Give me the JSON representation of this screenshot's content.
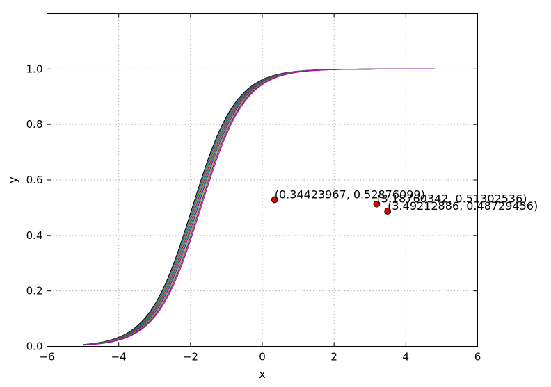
{
  "chart_data": {
    "type": "line",
    "title": "",
    "xlabel": "x",
    "ylabel": "y",
    "xlim": [
      -6,
      6
    ],
    "ylim": [
      0,
      1.2
    ],
    "xticks": [
      -6,
      -4,
      -2,
      0,
      2,
      4,
      6
    ],
    "yticks": [
      0.0,
      0.2,
      0.4,
      0.6,
      0.8,
      1.0
    ],
    "xtick_labels": [
      "−6",
      "−4",
      "−2",
      "0",
      "2",
      "4",
      "6"
    ],
    "ytick_labels": [
      "0.0",
      "0.2",
      "0.4",
      "0.6",
      "0.8",
      "1.0"
    ],
    "grid": true,
    "curve_family": {
      "function": "logistic",
      "x_range": [
        -5,
        4.8
      ],
      "midpoints": [
        -1.95,
        -1.92,
        -1.89,
        -1.86,
        -1.83,
        -1.8,
        -1.77,
        -1.74,
        -1.71
      ],
      "slope": 1.65,
      "colors": [
        "#000000",
        "#1f4e9a",
        "#2e7d32",
        "#b71c1c",
        "#00838f",
        "#6a1b9a",
        "#9e9d24",
        "#424242",
        "#c000c0"
      ]
    },
    "points": [
      {
        "x": 0.34423967,
        "y": 0.52876099,
        "label": "(0.34423967, 0.52876099)"
      },
      {
        "x": 3.18760342,
        "y": 0.51302536,
        "label": "(3.18760342, 0.51302536)"
      },
      {
        "x": 3.49212886,
        "y": 0.48729456,
        "label": "(3.49212886, 0.48729456)"
      }
    ],
    "point_color": "#e00000"
  }
}
